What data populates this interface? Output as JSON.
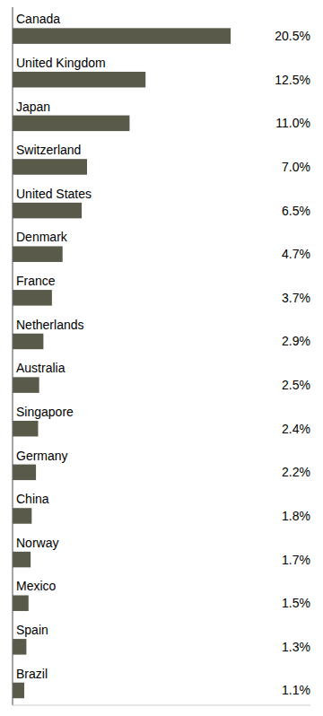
{
  "chart_data": {
    "type": "bar",
    "orientation": "horizontal",
    "categories": [
      "Canada",
      "United Kingdom",
      "Japan",
      "Switzerland",
      "United States",
      "Denmark",
      "France",
      "Netherlands",
      "Australia",
      "Singapore",
      "Germany",
      "China",
      "Norway",
      "Mexico",
      "Spain",
      "Brazil"
    ],
    "values": [
      20.5,
      12.5,
      11.0,
      7.0,
      6.5,
      4.7,
      3.7,
      2.9,
      2.5,
      2.4,
      2.2,
      1.8,
      1.7,
      1.5,
      1.3,
      1.1
    ],
    "value_labels": [
      "20.5%",
      "12.5%",
      "11.0%",
      "7.0%",
      "6.5%",
      "4.7%",
      "3.7%",
      "2.9%",
      "2.5%",
      "2.4%",
      "2.2%",
      "1.8%",
      "1.7%",
      "1.5%",
      "1.3%",
      "1.1%"
    ],
    "data_labels": true,
    "color": "#595a4a",
    "xlim": [
      0,
      28
    ],
    "tick_labels": false,
    "grid": false
  }
}
